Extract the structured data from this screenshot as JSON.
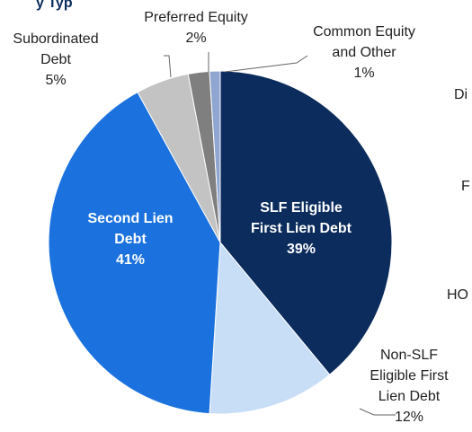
{
  "chart_data": {
    "type": "pie",
    "title": "y Typ",
    "categories": [
      "SLF Eligible First Lien Debt",
      "Non-SLF Eligible First Lien Debt",
      "Second Lien Debt",
      "Subordinated Debt",
      "Preferred Equity",
      "Common Equity and Other"
    ],
    "values": [
      39,
      12,
      41,
      5,
      2,
      1
    ],
    "value_labels": [
      "39%",
      "12%",
      "41%",
      "5%",
      "2%",
      "1%"
    ],
    "colors": [
      "#0b2c5c",
      "#c8def7",
      "#1b72de",
      "#c3c3c3",
      "#7f7f7f",
      "#8ea6d0"
    ],
    "annotations": [
      "Di",
      "F",
      "HO"
    ]
  }
}
